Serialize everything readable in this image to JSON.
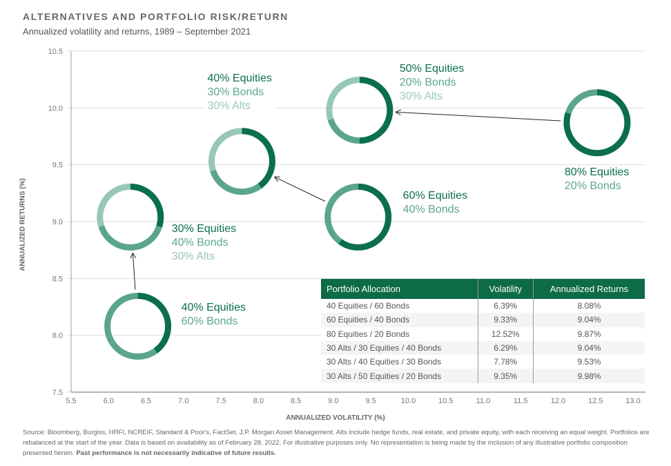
{
  "header": {
    "title": "ALTERNATIVES AND PORTFOLIO RISK/RETURN",
    "subtitle": "Annualized volatility and returns, 1989 – September 2021"
  },
  "chart_data": {
    "type": "scatter",
    "title": "ALTERNATIVES AND PORTFOLIO RISK/RETURN",
    "subtitle": "Annualized volatility and returns, 1989 – September 2021",
    "xlabel": "ANNUALIZED VOLATILITY (%)",
    "ylabel": "ANNUALIZED RETURNS (%)",
    "xlim": [
      5.5,
      13.0
    ],
    "ylim": [
      7.5,
      10.5
    ],
    "xticks": [
      "5.5",
      "6.0",
      "6.5",
      "7.0",
      "7.5",
      "8.0",
      "8.5",
      "9.0",
      "9.5",
      "10.0",
      "10.5",
      "11.0",
      "11.5",
      "12.0",
      "12.5",
      "13.0"
    ],
    "yticks": [
      "7.5",
      "8.0",
      "8.5",
      "9.0",
      "9.5",
      "10.0",
      "10.5"
    ],
    "grid": "horizontal",
    "colors": {
      "equities": "#0b6e4f",
      "bonds": "#5ba68a",
      "alts": "#97c8b5",
      "header": "#0d6b47"
    },
    "points": [
      {
        "x": 6.39,
        "y": 8.08,
        "equities": 40,
        "bonds": 60,
        "alts": 0,
        "labels": [
          "40% Equities",
          "60% Bonds"
        ]
      },
      {
        "x": 9.33,
        "y": 9.04,
        "equities": 60,
        "bonds": 40,
        "alts": 0,
        "labels": [
          "60% Equities",
          "40% Bonds"
        ]
      },
      {
        "x": 12.52,
        "y": 9.87,
        "equities": 80,
        "bonds": 20,
        "alts": 0,
        "labels": [
          "80% Equities",
          "20% Bonds"
        ]
      },
      {
        "x": 6.29,
        "y": 9.04,
        "equities": 30,
        "bonds": 40,
        "alts": 30,
        "labels": [
          "30% Equities",
          "40% Bonds",
          "30% Alts"
        ]
      },
      {
        "x": 7.78,
        "y": 9.53,
        "equities": 40,
        "bonds": 30,
        "alts": 30,
        "labels": [
          "40% Equities",
          "30% Bonds",
          "30% Alts"
        ]
      },
      {
        "x": 9.35,
        "y": 9.98,
        "equities": 50,
        "bonds": 20,
        "alts": 30,
        "labels": [
          "50% Equities",
          "20% Bonds",
          "30% Alts"
        ]
      }
    ],
    "arrows": [
      [
        0,
        3
      ],
      [
        1,
        4
      ],
      [
        2,
        5
      ]
    ]
  },
  "table": {
    "headers": [
      "Portfolio Allocation",
      "Volatility",
      "Annualized Returns"
    ],
    "rows": [
      [
        "40 Equities / 60 Bonds",
        "6.39%",
        "8.08%"
      ],
      [
        "60 Equities / 40 Bonds",
        "9.33%",
        "9.04%"
      ],
      [
        "80 Equities / 20 Bonds",
        "12.52%",
        "9.87%"
      ],
      [
        "30 Alts / 30 Equities / 40 Bonds",
        "6.29%",
        "9.04%"
      ],
      [
        "30 Alts / 40 Equities / 30 Bonds",
        "7.78%",
        "9.53%"
      ],
      [
        "30 Alts / 50 Equities / 20 Bonds",
        "9.35%",
        "9.98%"
      ]
    ]
  },
  "footer": {
    "source": "Source: Bloomberg, Burgiss, HRFI, NCREIF, Standard & Poor's, FactSet, J.P. Morgan Asset Management. Alts include hedge funds, real estate, and private equity, with each receiving an equal weight. Portfolios are rebalanced at the start of the year. Data is based on availability as of February 28, 2022. For illustrative purposes only. No representation is being made by the inclusion of any illustrative portfolio composition presented herein. ",
    "disclaimer": "Past performance is not necessarily indicative of future results."
  }
}
